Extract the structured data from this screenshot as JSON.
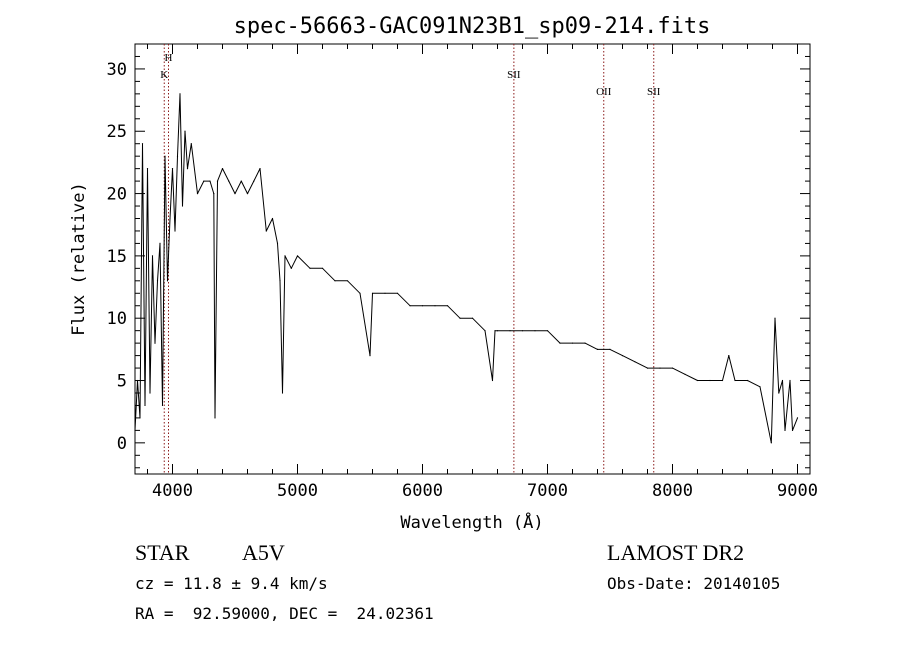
{
  "chart_data": {
    "type": "line",
    "title": "spec-56663-GAC091N23B1_sp09-214.fits",
    "xlabel": "Wavelength (Å)",
    "ylabel": "Flux (relative)",
    "xlim": [
      3700,
      9100
    ],
    "ylim": [
      -2.5,
      32
    ],
    "xticks": [
      "4000",
      "5000",
      "6000",
      "7000",
      "8000",
      "9000"
    ],
    "yticks": [
      "0",
      "5",
      "10",
      "15",
      "20",
      "25",
      "30"
    ],
    "grid": false,
    "series": [
      {
        "x": [
          3700,
          3720,
          3740,
          3760,
          3780,
          3800,
          3820,
          3840,
          3860,
          3880,
          3900,
          3920,
          3940,
          3960,
          3980,
          4000,
          4020,
          4040,
          4060,
          4080,
          4100,
          4120,
          4150,
          4200,
          4250,
          4300,
          4330,
          4340,
          4360,
          4400,
          4450,
          4500,
          4550,
          4600,
          4650,
          4700,
          4750,
          4800,
          4840,
          4860,
          4880,
          4900,
          4950,
          5000,
          5100,
          5200,
          5300,
          5400,
          5500,
          5580,
          5600,
          5700,
          5800,
          5900,
          6000,
          6100,
          6200,
          6300,
          6400,
          6500,
          6560,
          6580,
          6600,
          6700,
          6800,
          6900,
          7000,
          7100,
          7200,
          7300,
          7400,
          7500,
          7600,
          7700,
          7800,
          7900,
          8000,
          8100,
          8200,
          8300,
          8400,
          8450,
          8500,
          8600,
          8700,
          8790,
          8820,
          8850,
          8880,
          8900,
          8940,
          8960,
          9000
        ],
        "y": [
          1,
          5,
          2,
          24,
          3,
          22,
          4,
          15,
          8,
          13,
          16,
          3,
          23,
          13,
          18,
          22,
          17,
          23,
          28,
          19,
          25,
          22,
          24,
          20,
          21,
          21,
          20,
          2,
          21,
          22,
          21,
          20,
          21,
          20,
          21,
          22,
          17,
          18,
          16,
          13,
          4,
          15,
          14,
          15,
          14,
          14,
          13,
          13,
          12,
          7,
          12,
          12,
          12,
          11,
          11,
          11,
          11,
          10,
          10,
          9,
          5,
          9,
          9,
          9,
          9,
          9,
          9,
          8,
          8,
          8,
          7.5,
          7.5,
          7,
          6.5,
          6,
          6,
          6,
          5.5,
          5,
          5,
          5,
          7,
          5,
          5,
          4.5,
          0,
          10,
          4,
          5,
          1,
          5,
          1,
          2
        ]
      }
    ],
    "line_markers": [
      {
        "label": "H",
        "x": 3968
      },
      {
        "label": "K",
        "x": 3934
      },
      {
        "label": "SII",
        "x": 6731
      },
      {
        "label": "OII",
        "x": 7450
      },
      {
        "label": "SII",
        "x": 7850
      }
    ]
  },
  "info": {
    "object_class": "STAR",
    "subclass": "A5V",
    "survey": "LAMOST DR2",
    "cz": "cz = 11.8 ± 9.4 km/s",
    "obs_date": "Obs-Date: 20140105",
    "coords": "RA =  92.59000, DEC =  24.02361"
  }
}
